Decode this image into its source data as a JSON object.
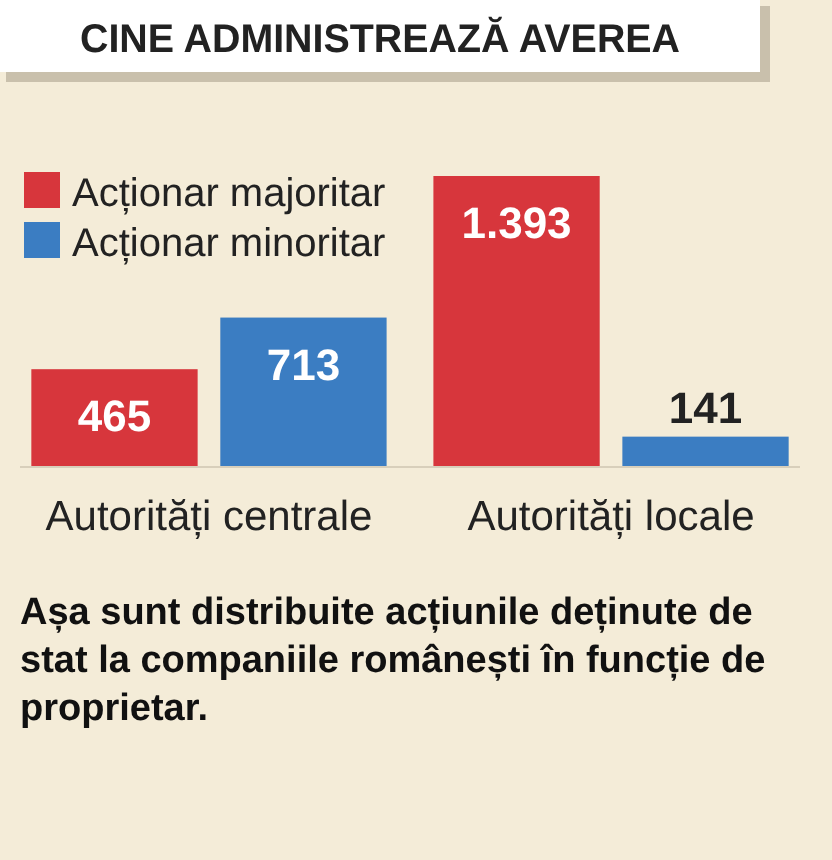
{
  "chart_data": {
    "type": "bar",
    "title": "CINE ADMINISTREAZĂ AVEREA",
    "categories": [
      "Autorități centrale",
      "Autorități locale"
    ],
    "series": [
      {
        "name": "Acționar majoritar",
        "color": "#d7363c",
        "values": [
          465,
          1393
        ],
        "value_labels": [
          "465",
          "1.393"
        ]
      },
      {
        "name": "Acționar minoritar",
        "color": "#3b7dc2",
        "values": [
          713,
          141
        ],
        "value_labels": [
          "713",
          "141"
        ]
      }
    ],
    "legend": "top left",
    "annotations": [
      "Așa sunt distribuite acțiunile deținute de stat la companiile românești în funcție de proprietar."
    ]
  }
}
